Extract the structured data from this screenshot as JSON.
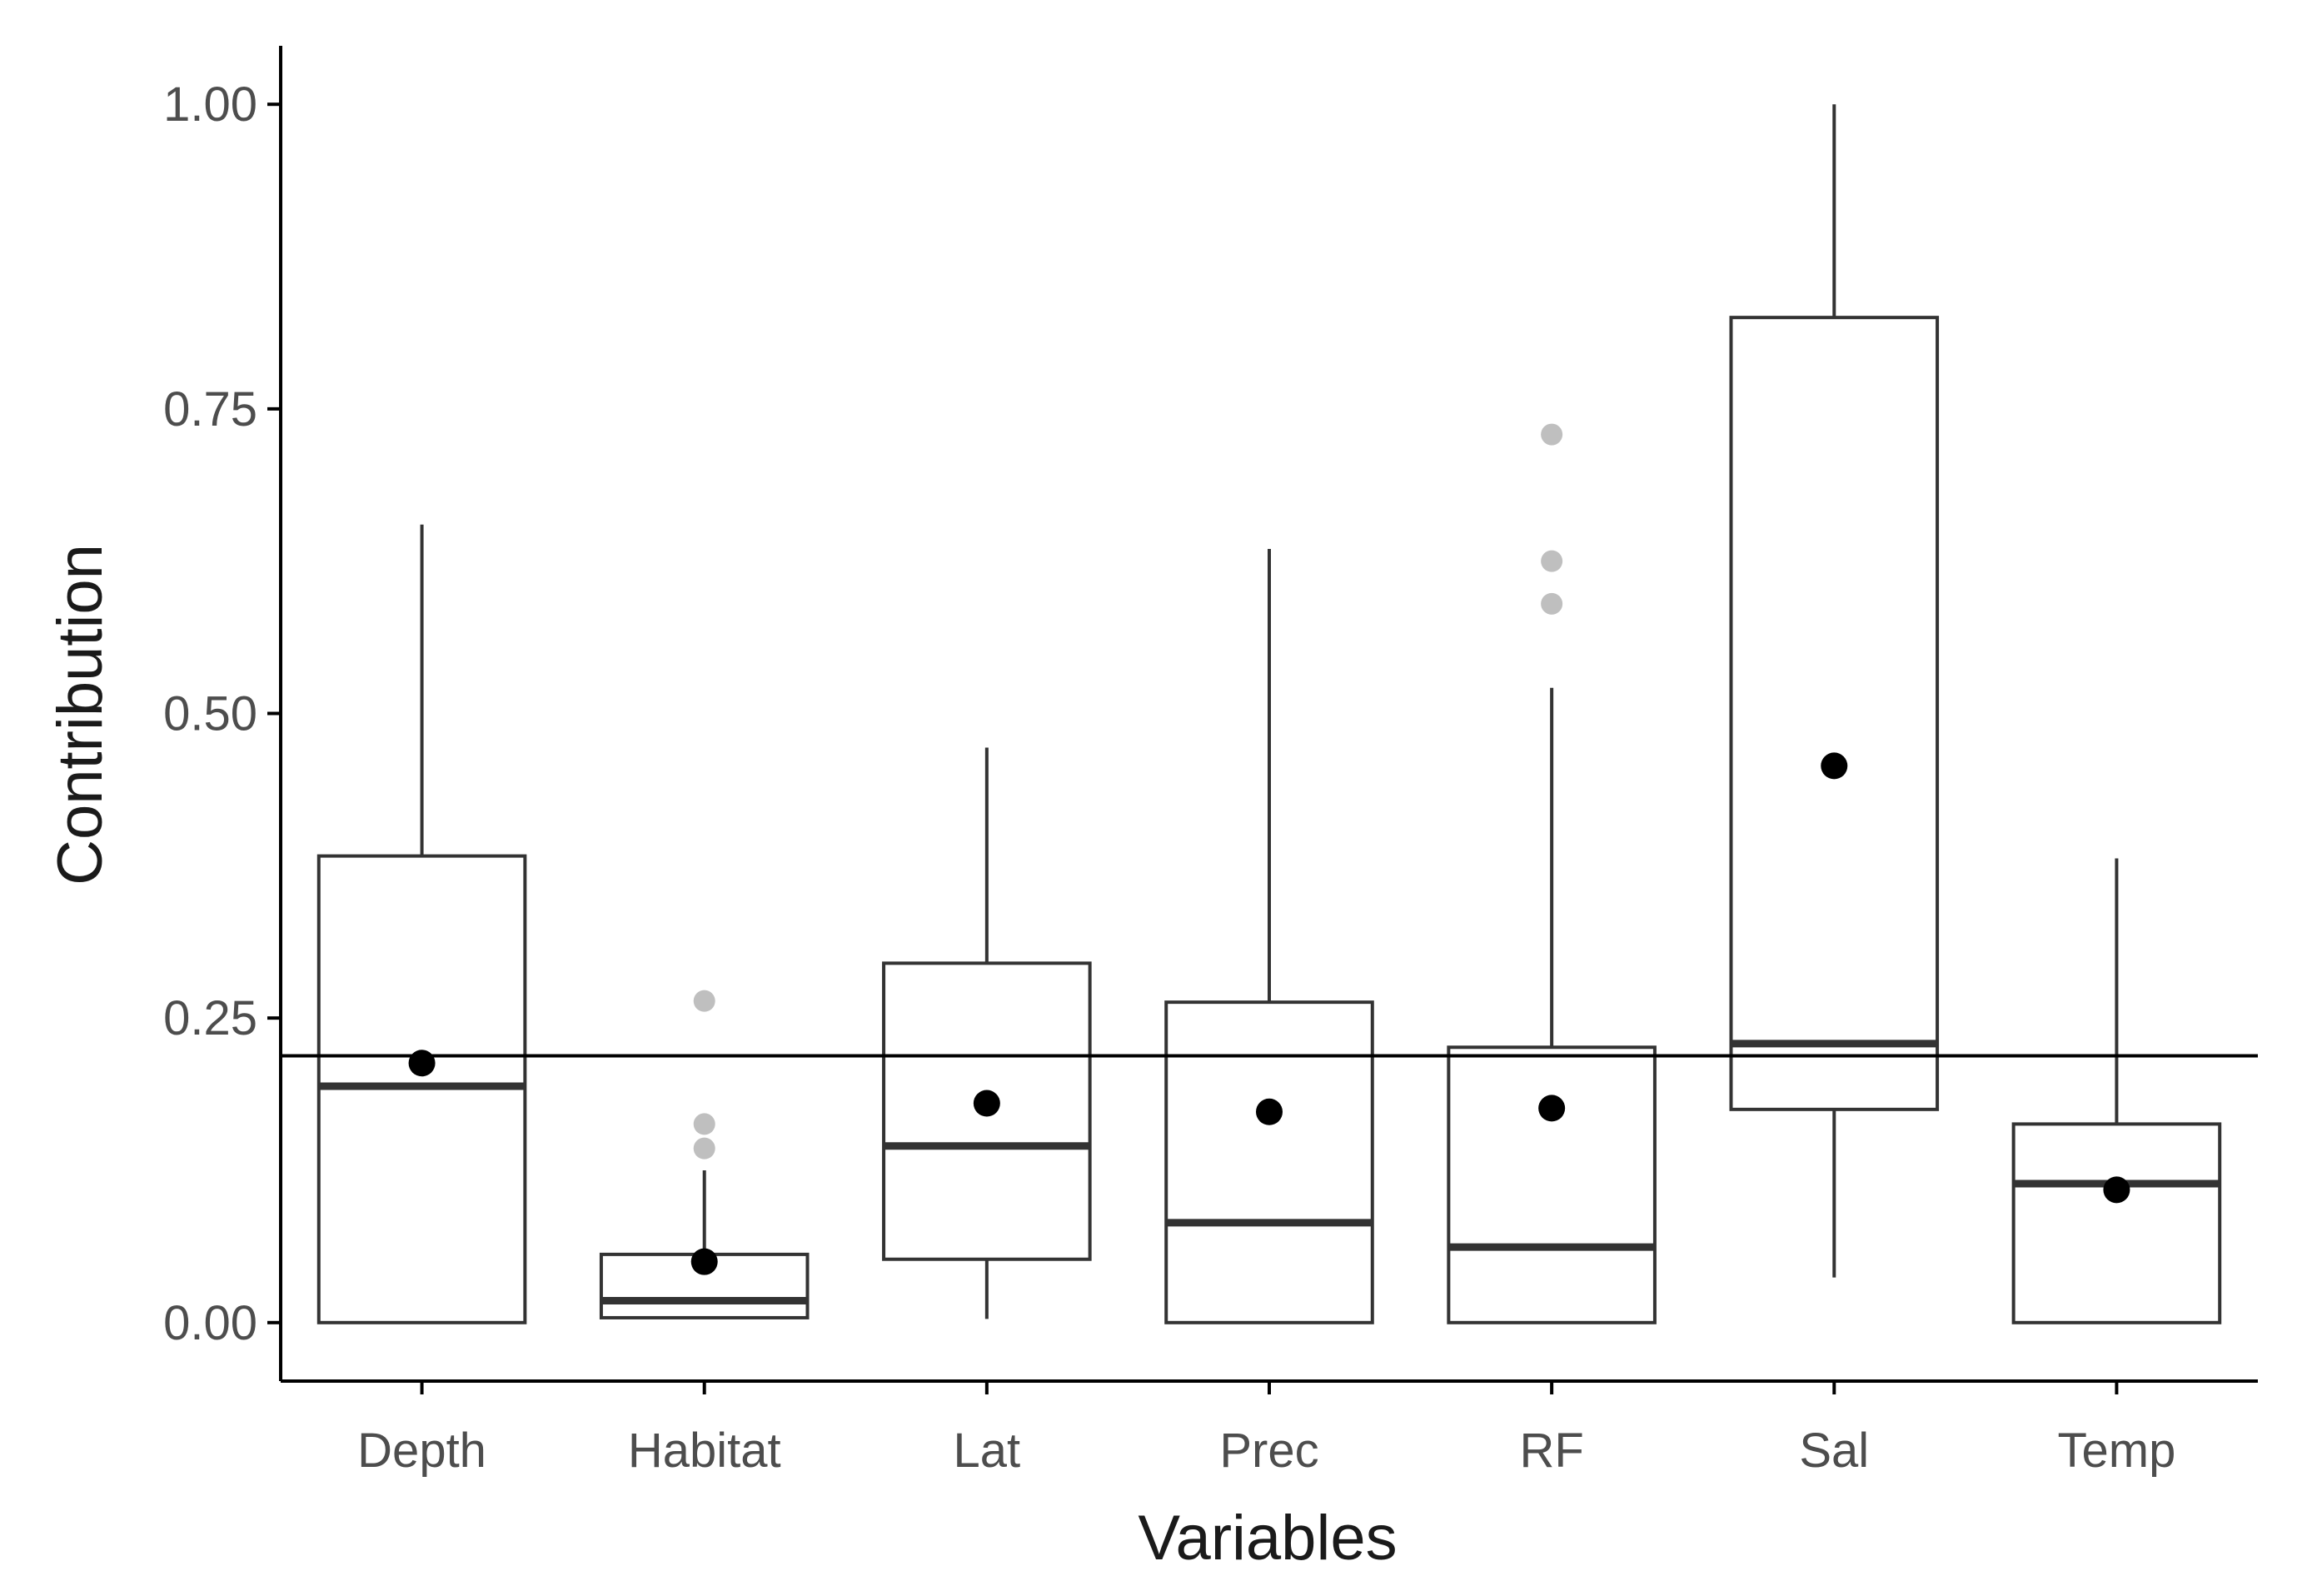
{
  "chart_data": {
    "type": "boxplot",
    "xlabel": "Variables",
    "ylabel": "Contribution",
    "ylim": [
      -0.048,
      1.048
    ],
    "yticks": [
      0.0,
      0.25,
      0.5,
      0.75,
      1.0
    ],
    "ytick_labels": [
      "0.00",
      "0.25",
      "0.50",
      "0.75",
      "1.00"
    ],
    "reference_line": 0.219,
    "categories": [
      "Depth",
      "Habitat",
      "Lat",
      "Prec",
      "RF",
      "Sal",
      "Temp"
    ],
    "boxes": [
      {
        "category": "Depth",
        "whisker_low": 0.0,
        "q1": 0.0,
        "median": 0.194,
        "q3": 0.383,
        "whisker_high": 0.655,
        "mean": 0.213,
        "outliers": []
      },
      {
        "category": "Habitat",
        "whisker_low": 0.004,
        "q1": 0.004,
        "median": 0.018,
        "q3": 0.056,
        "whisker_high": 0.125,
        "mean": 0.05,
        "outliers": [
          0.264,
          0.163,
          0.143
        ]
      },
      {
        "category": "Lat",
        "whisker_low": 0.003,
        "q1": 0.052,
        "median": 0.145,
        "q3": 0.295,
        "whisker_high": 0.472,
        "mean": 0.18,
        "outliers": []
      },
      {
        "category": "Prec",
        "whisker_low": 0.0,
        "q1": 0.0,
        "median": 0.082,
        "q3": 0.263,
        "whisker_high": 0.635,
        "mean": 0.173,
        "outliers": []
      },
      {
        "category": "RF",
        "whisker_low": 0.0,
        "q1": 0.0,
        "median": 0.062,
        "q3": 0.226,
        "whisker_high": 0.521,
        "mean": 0.176,
        "outliers": [
          0.729,
          0.625,
          0.59
        ]
      },
      {
        "category": "Sal",
        "whisker_low": 0.037,
        "q1": 0.175,
        "median": 0.229,
        "q3": 0.825,
        "whisker_high": 1.0,
        "mean": 0.457,
        "outliers": []
      },
      {
        "category": "Temp",
        "whisker_low": 0.0,
        "q1": 0.0,
        "median": 0.114,
        "q3": 0.163,
        "whisker_high": 0.381,
        "mean": 0.109,
        "outliers": []
      }
    ],
    "colors": {
      "box_stroke": "#333333",
      "mean_point": "#000000",
      "outlier": "#bfbfbf",
      "axis": "#000000",
      "tick_text": "#4d4d4d",
      "title_text": "#1a1a1a"
    }
  }
}
